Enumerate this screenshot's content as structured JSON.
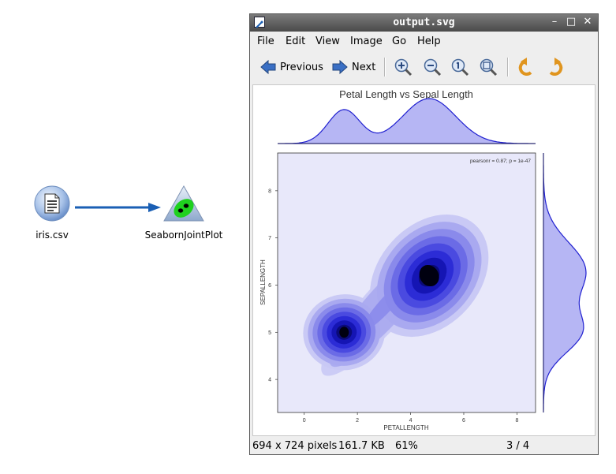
{
  "canvas": {
    "nodes": [
      {
        "label": "iris.csv",
        "icon": "data-file-icon"
      },
      {
        "label": "SeabornJointPlot",
        "icon": "seaborn-jointplot-icon"
      }
    ]
  },
  "viewer": {
    "title": "output.svg",
    "window_buttons": [
      "–",
      "□",
      "✕"
    ],
    "menu": [
      "File",
      "Edit",
      "View",
      "Image",
      "Go",
      "Help"
    ],
    "toolbar": {
      "previous_label": "Previous",
      "next_label": "Next"
    },
    "status": {
      "dimensions": "694 x 724 pixels",
      "file_size": "161.7 KB",
      "zoom": "61%",
      "position": "3 / 4"
    }
  },
  "chart_data": {
    "type": "heatmap",
    "title": "Petal Length vs Sepal Length",
    "annotation": "pearsonr = 0.87; p = 1e-47",
    "xlabel": "PETALLENGTH",
    "ylabel": "SEPALLENGTH",
    "x_ticks": [
      "0",
      "2",
      "4",
      "6",
      "8"
    ],
    "y_ticks": [
      "4",
      "5",
      "6",
      "7",
      "8"
    ],
    "xlim": [
      -1,
      8.7
    ],
    "ylim": [
      3.3,
      8.8
    ],
    "kde_modes": [
      {
        "x": 1.5,
        "y": 5.0
      },
      {
        "x": 4.7,
        "y": 6.2
      }
    ],
    "colors": {
      "fill": "#3535e0",
      "line": "#2020d0",
      "background": "#e8e8fa"
    }
  }
}
